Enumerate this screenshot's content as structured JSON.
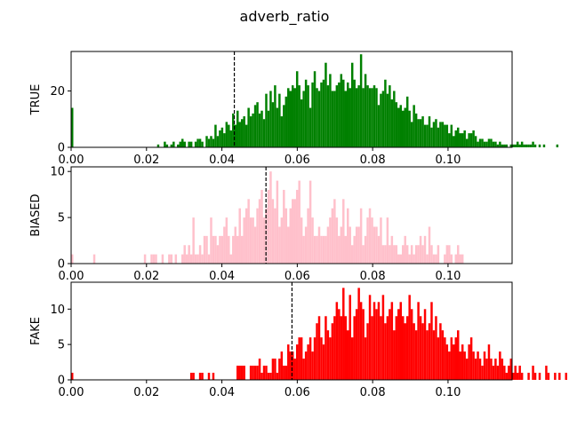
{
  "figure": {
    "title": "adverb_ratio"
  },
  "chart_data": [
    {
      "type": "bar",
      "ylabel": "TRUE",
      "color": "#008000",
      "xlim": [
        0,
        0.117
      ],
      "ylim": [
        0,
        34
      ],
      "xticks": [
        "0.00",
        "0.02",
        "0.04",
        "0.06",
        "0.08",
        "0.10"
      ],
      "xtick_values": [
        0,
        0.02,
        0.04,
        0.06,
        0.08,
        0.1
      ],
      "yticks": [
        "0",
        "20"
      ],
      "ytick_values": [
        0,
        20
      ],
      "mean_line": 0.0433,
      "bin_width": 0.000585,
      "bin_start": 0,
      "values": [
        14,
        0,
        0,
        0,
        0,
        0,
        0,
        0,
        0,
        0,
        0,
        0,
        0,
        0,
        0,
        0,
        0,
        0,
        0,
        0,
        0,
        0,
        0,
        0,
        0,
        0,
        0,
        0,
        0,
        0,
        0,
        0,
        0,
        0,
        0,
        0,
        0,
        0,
        0,
        1,
        0,
        0,
        2,
        1,
        0,
        1,
        2,
        0,
        1,
        2,
        3,
        2,
        0,
        2,
        2,
        0,
        2,
        3,
        3,
        2,
        0,
        4,
        3,
        4,
        3,
        8,
        4,
        6,
        7,
        5,
        9,
        8,
        6,
        12,
        8,
        13,
        9,
        10,
        11,
        8,
        14,
        11,
        12,
        15,
        16,
        12,
        13,
        10,
        19,
        13,
        20,
        16,
        22,
        14,
        19,
        11,
        15,
        18,
        21,
        20,
        22,
        21,
        27,
        22,
        17,
        20,
        24,
        22,
        14,
        23,
        27,
        21,
        20,
        23,
        24,
        30,
        22,
        26,
        20,
        20,
        22,
        23,
        26,
        24,
        20,
        23,
        21,
        30,
        24,
        21,
        22,
        33,
        21,
        26,
        22,
        21,
        21,
        22,
        21,
        15,
        19,
        20,
        24,
        19,
        22,
        17,
        20,
        16,
        14,
        15,
        13,
        14,
        18,
        13,
        9,
        15,
        12,
        10,
        10,
        11,
        8,
        8,
        11,
        7,
        9,
        10,
        7,
        9,
        9,
        8,
        8,
        5,
        8,
        4,
        6,
        7,
        5,
        5,
        6,
        3,
        5,
        5,
        6,
        4,
        2,
        3,
        3,
        2,
        2,
        3,
        3,
        2,
        2,
        1,
        2,
        1,
        1,
        1,
        0,
        1,
        1,
        1,
        2,
        1,
        2,
        1,
        1,
        1,
        1,
        2,
        1,
        0,
        1,
        0,
        1,
        0,
        0,
        0,
        0,
        0,
        1,
        0,
        0,
        0,
        0,
        0,
        0,
        0,
        0,
        0,
        0,
        0,
        0,
        0,
        0,
        0,
        0,
        0,
        0,
        0,
        0,
        0,
        0
      ]
    },
    {
      "type": "bar",
      "ylabel": "BIASED",
      "color": "#ffc0cb",
      "xlim": [
        0,
        0.117
      ],
      "ylim": [
        0,
        10.5
      ],
      "xticks": [
        "0.00",
        "0.02",
        "0.04",
        "0.06",
        "0.08",
        "0.10"
      ],
      "xtick_values": [
        0,
        0.02,
        0.04,
        0.06,
        0.08,
        0.1
      ],
      "yticks": [
        "0",
        "5",
        "10"
      ],
      "ytick_values": [
        0,
        5,
        10
      ],
      "mean_line": 0.0517,
      "bin_width": 0.000585,
      "bin_start": 0,
      "values": [
        1,
        0,
        0,
        0,
        0,
        0,
        0,
        0,
        0,
        0,
        1,
        0,
        0,
        0,
        0,
        0,
        0,
        0,
        0,
        0,
        0,
        0,
        0,
        0,
        0,
        0,
        0,
        0,
        0,
        0,
        0,
        0,
        0,
        1,
        0,
        0,
        1,
        1,
        1,
        0,
        0,
        1,
        0,
        0,
        1,
        1,
        0,
        1,
        0,
        0,
        1,
        2,
        1,
        2,
        1,
        5,
        1,
        1,
        2,
        1,
        3,
        3,
        1,
        5,
        3,
        3,
        2,
        3,
        3,
        4,
        5,
        3,
        1,
        3,
        4,
        3,
        6,
        3,
        5,
        6,
        7,
        5,
        5,
        4,
        6,
        7,
        8,
        5,
        6,
        8,
        10,
        7,
        6,
        9,
        4,
        5,
        8,
        6,
        4,
        6,
        7,
        7,
        8,
        9,
        5,
        3,
        4,
        6,
        9,
        5,
        3,
        3,
        4,
        3,
        3,
        3,
        4,
        5,
        6,
        7,
        5,
        3,
        4,
        7,
        3,
        6,
        4,
        2,
        3,
        4,
        4,
        6,
        2,
        3,
        5,
        6,
        5,
        4,
        4,
        3,
        5,
        2,
        2,
        5,
        2,
        3,
        2,
        2,
        1,
        1,
        2,
        3,
        2,
        1,
        2,
        1,
        2,
        2,
        3,
        2,
        3,
        1,
        4,
        2,
        1,
        1,
        2,
        0,
        0,
        1,
        2,
        2,
        1,
        0,
        1,
        2,
        1,
        1,
        0,
        0,
        0,
        0,
        0,
        0,
        0,
        0,
        0,
        0,
        0,
        0,
        0,
        0,
        0,
        0,
        0,
        0,
        0,
        0,
        0,
        0,
        0,
        0,
        0,
        0,
        0,
        0,
        0,
        0,
        0,
        0,
        0,
        0,
        0,
        0,
        0,
        0,
        0,
        0,
        0,
        0,
        0,
        0,
        0,
        0,
        0,
        0,
        0,
        0,
        0,
        0,
        0,
        0,
        0,
        0,
        0,
        0,
        0,
        0,
        1,
        0,
        0,
        0,
        0,
        0,
        0,
        0,
        0,
        0,
        0,
        0,
        0,
        0,
        0,
        0,
        0,
        0,
        0,
        0,
        0,
        0,
        0,
        0,
        0
      ]
    },
    {
      "type": "bar",
      "ylabel": "FAKE",
      "color": "#ff0000",
      "xlim": [
        0,
        0.117
      ],
      "ylim": [
        0,
        13.8
      ],
      "xticks": [
        "0.00",
        "0.02",
        "0.04",
        "0.06",
        "0.08",
        "0.10"
      ],
      "xtick_values": [
        0,
        0.02,
        0.04,
        0.06,
        0.08,
        0.1
      ],
      "yticks": [
        "0",
        "5",
        "10"
      ],
      "ytick_values": [
        0,
        5,
        10
      ],
      "mean_line": 0.0586,
      "bin_width": 0.000585,
      "bin_start": 0,
      "values": [
        1,
        0,
        0,
        0,
        0,
        0,
        0,
        0,
        0,
        0,
        0,
        0,
        0,
        0,
        0,
        0,
        0,
        0,
        0,
        0,
        0,
        0,
        0,
        0,
        0,
        0,
        0,
        0,
        0,
        0,
        0,
        0,
        0,
        0,
        0,
        0,
        0,
        0,
        0,
        0,
        0,
        0,
        0,
        0,
        0,
        0,
        0,
        0,
        0,
        0,
        0,
        0,
        0,
        0,
        1,
        1,
        0,
        0,
        1,
        1,
        0,
        0,
        1,
        0,
        1,
        0,
        0,
        0,
        0,
        0,
        0,
        0,
        0,
        0,
        0,
        2,
        2,
        2,
        2,
        0,
        0,
        2,
        2,
        2,
        2,
        3,
        1,
        2,
        2,
        1,
        1,
        3,
        3,
        1,
        3,
        4,
        2,
        2,
        5,
        4,
        4,
        3,
        5,
        6,
        6,
        3,
        4,
        5,
        6,
        4,
        6,
        8,
        9,
        6,
        5,
        9,
        7,
        6,
        8,
        9,
        11,
        10,
        9,
        13,
        9,
        7,
        12,
        6,
        9,
        10,
        13,
        11,
        10,
        6,
        8,
        12,
        9,
        11,
        10,
        11,
        9,
        12,
        8,
        9,
        10,
        11,
        7,
        9,
        10,
        11,
        9,
        8,
        9,
        12,
        10,
        8,
        7,
        11,
        9,
        8,
        10,
        7,
        8,
        11,
        7,
        9,
        6,
        8,
        7,
        6,
        5,
        4,
        6,
        5,
        6,
        7,
        4,
        5,
        4,
        3,
        5,
        6,
        4,
        3,
        4,
        3,
        2,
        4,
        3,
        5,
        3,
        2,
        3,
        2,
        4,
        3,
        2,
        1,
        2,
        3,
        1,
        2,
        1,
        2,
        1,
        0,
        0,
        1,
        0,
        2,
        1,
        0,
        1,
        0,
        0,
        2,
        1,
        0,
        0,
        1,
        0,
        1,
        0,
        0,
        1,
        0,
        0,
        1,
        1,
        0,
        0,
        0,
        0,
        0,
        0,
        0,
        0,
        0,
        0,
        0,
        0,
        0,
        0,
        0,
        0,
        0,
        0,
        0,
        0,
        0,
        0,
        0,
        0,
        0,
        0,
        0
      ]
    }
  ]
}
